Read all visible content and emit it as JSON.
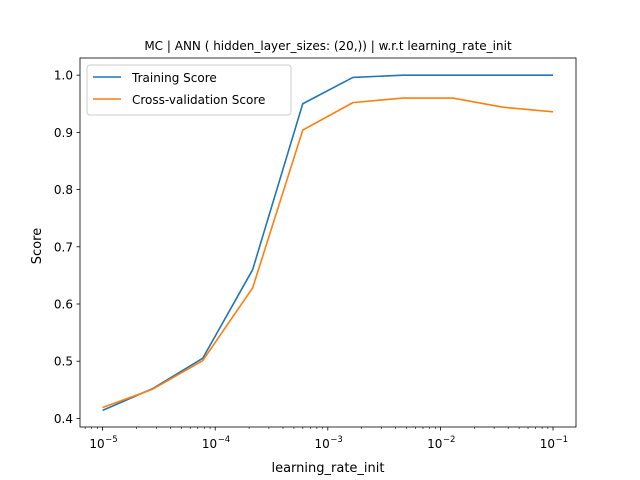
{
  "chart_data": {
    "type": "line",
    "title": "MC | ANN ( hidden_layer_sizes: (20,))  | w.r.t learning_rate_init",
    "xlabel": "learning_rate_init",
    "ylabel": "Score",
    "xscale": "log",
    "xlim": [
      6.3e-06,
      0.16
    ],
    "ylim": [
      0.385,
      1.03
    ],
    "x_ticks": [
      {
        "value": 1e-05,
        "base": "10",
        "exp": "−5"
      },
      {
        "value": 0.0001,
        "base": "10",
        "exp": "−4"
      },
      {
        "value": 0.001,
        "base": "10",
        "exp": "−3"
      },
      {
        "value": 0.01,
        "base": "10",
        "exp": "−2"
      },
      {
        "value": 0.1,
        "base": "10",
        "exp": "−1"
      }
    ],
    "y_ticks": [
      {
        "value": 0.4,
        "label": "0.4"
      },
      {
        "value": 0.5,
        "label": "0.5"
      },
      {
        "value": 0.6,
        "label": "0.6"
      },
      {
        "value": 0.7,
        "label": "0.7"
      },
      {
        "value": 0.8,
        "label": "0.8"
      },
      {
        "value": 0.9,
        "label": "0.9"
      },
      {
        "value": 1.0,
        "label": "1.0"
      }
    ],
    "x": [
      1e-05,
      2.78e-05,
      7.74e-05,
      0.000215,
      0.000599,
      0.00167,
      0.00464,
      0.0129,
      0.0359,
      0.1
    ],
    "series": [
      {
        "name": "Training Score",
        "color": "#1f77b4",
        "values": [
          0.414,
          0.452,
          0.505,
          0.66,
          0.95,
          0.996,
          1.0,
          1.0,
          1.0,
          1.0
        ]
      },
      {
        "name": "Cross-validation Score",
        "color": "#ff7f0e",
        "values": [
          0.419,
          0.451,
          0.501,
          0.628,
          0.904,
          0.952,
          0.96,
          0.96,
          0.944,
          0.936
        ]
      }
    ],
    "grid": false,
    "legend_position": "upper left"
  }
}
